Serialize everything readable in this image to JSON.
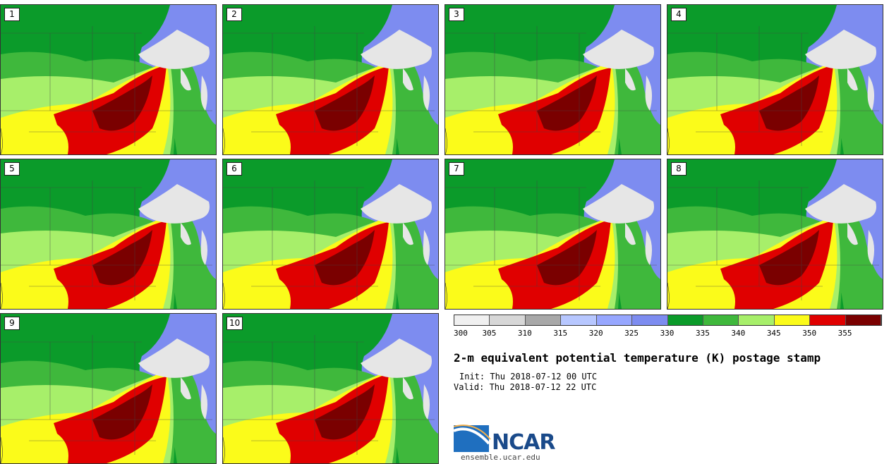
{
  "panels": [
    {
      "label": "1"
    },
    {
      "label": "2"
    },
    {
      "label": "3"
    },
    {
      "label": "4"
    },
    {
      "label": "5"
    },
    {
      "label": "6"
    },
    {
      "label": "7"
    },
    {
      "label": "8"
    },
    {
      "label": "9"
    },
    {
      "label": "10"
    }
  ],
  "legend": {
    "tick_labels": [
      "300",
      "305",
      "310",
      "315",
      "320",
      "325",
      "330",
      "335",
      "340",
      "345",
      "350",
      "355"
    ],
    "colors": [
      "#f0f0f0",
      "#d7d7d7",
      "#a8a8a8",
      "#b7c7ff",
      "#97a7ff",
      "#7d8cf0",
      "#0b9b2a",
      "#3fb83c",
      "#a7ef6a",
      "#fbfb1a",
      "#e00000",
      "#7a0000"
    ]
  },
  "title": "2-m equivalent potential temperature (K) postage stamp",
  "init_text": "Init: Thu 2018-07-12 00 UTC",
  "valid_text": "Valid: Thu 2018-07-12 22 UTC",
  "logo": {
    "name": "NCAR",
    "site": "ensemble.ucar.edu"
  },
  "map_colors": {
    "blue": "#7d8cf0",
    "darkgreen": "#0b9b2a",
    "green": "#3fb83c",
    "lightgreen": "#a7ef6a",
    "yellow": "#fbfb1a",
    "red": "#e00000",
    "darkred": "#7a0000",
    "lake": "#e6e6e6"
  }
}
